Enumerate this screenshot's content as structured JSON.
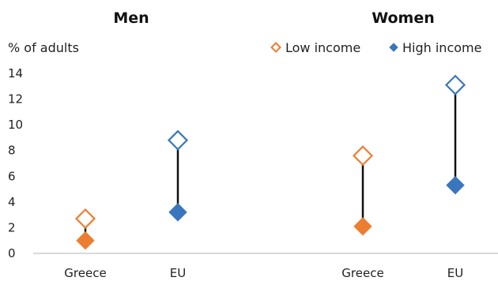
{
  "chart_data": {
    "type": "dot",
    "unit_label": "% of adults",
    "ylim": [
      0,
      14
    ],
    "yticks": [
      0,
      2,
      4,
      6,
      8,
      10,
      12,
      14
    ],
    "legend": [
      {
        "name": "Low income",
        "marker": "diamond-open",
        "color": "#ED7D31"
      },
      {
        "name": "High income",
        "marker": "diamond-filled",
        "color": "#3A76BD"
      }
    ],
    "panels": [
      {
        "title": "Men",
        "categories": [
          "Greece",
          "EU"
        ],
        "series": [
          {
            "name": "Low income",
            "values": [
              2.7,
              8.8
            ]
          },
          {
            "name": "High income",
            "values": [
              1.0,
              3.2
            ]
          }
        ],
        "marker_colors": [
          "#ED7D31",
          "#3A76BD"
        ]
      },
      {
        "title": "Women",
        "categories": [
          "Greece",
          "EU"
        ],
        "series": [
          {
            "name": "Low income",
            "values": [
              7.6,
              13.1
            ]
          },
          {
            "name": "High income",
            "values": [
              2.1,
              5.3
            ]
          }
        ],
        "marker_colors": [
          "#ED7D31",
          "#3A76BD"
        ]
      }
    ]
  }
}
